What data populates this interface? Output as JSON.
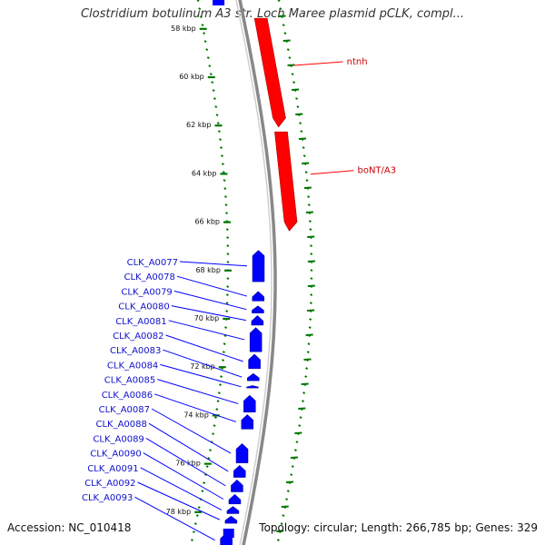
{
  "title": "Clostridium botulinum A3 str. Loch Maree plasmid pCLK, compl...",
  "footer": {
    "accession": "Accession: NC_010418",
    "topology": "Topology: circular; Length: 266,785 bp; Genes: 329"
  },
  "ticks": [
    {
      "label": "58 kbp",
      "pos": 58
    },
    {
      "label": "60 kbp",
      "pos": 60
    },
    {
      "label": "62 kbp",
      "pos": 62
    },
    {
      "label": "64 kbp",
      "pos": 64
    },
    {
      "label": "66 kbp",
      "pos": 66
    },
    {
      "label": "68 kbp",
      "pos": 68
    },
    {
      "label": "70 kbp",
      "pos": 70
    },
    {
      "label": "72 kbp",
      "pos": 72
    },
    {
      "label": "74 kbp",
      "pos": 74
    },
    {
      "label": "76 kbp",
      "pos": 76
    },
    {
      "label": "78 kbp",
      "pos": 78
    }
  ],
  "colors": {
    "forward_gene": "#ff0000",
    "reverse_gene": "#0000ff",
    "backbone": "#888888",
    "ticks": "#007700"
  },
  "forward_genes": [
    {
      "name": "ntnh",
      "start": 57.6,
      "end": 62.1
    },
    {
      "name": "boNT/A3",
      "start": 62.3,
      "end": 66.4
    }
  ],
  "reverse_genes": [
    {
      "name": "CLK_A0077",
      "start": 67.2,
      "end": 68.5
    },
    {
      "name": "CLK_A0078",
      "start": 68.9,
      "end": 69.3
    },
    {
      "name": "CLK_A0079",
      "start": 69.5,
      "end": 69.8
    },
    {
      "name": "CLK_A0080",
      "start": 69.9,
      "end": 70.3
    },
    {
      "name": "CLK_A0081",
      "start": 70.4,
      "end": 71.4
    },
    {
      "name": "CLK_A0082",
      "start": 71.5,
      "end": 72.1
    },
    {
      "name": "CLK_A0083",
      "start": 72.3,
      "end": 72.6
    },
    {
      "name": "CLK_A0084",
      "start": 72.8,
      "end": 72.9
    },
    {
      "name": "CLK_A0085",
      "start": 73.2,
      "end": 73.9
    },
    {
      "name": "CLK_A0086",
      "start": 74.0,
      "end": 74.6
    },
    {
      "name": "CLK_A0087",
      "start": 75.2,
      "end": 76.0
    },
    {
      "name": "CLK_A0088",
      "start": 76.1,
      "end": 76.6
    },
    {
      "name": "CLK_A0089",
      "start": 76.7,
      "end": 77.2
    },
    {
      "name": "CLK_A0090",
      "start": 77.3,
      "end": 77.7
    },
    {
      "name": "CLK_A0091",
      "start": 77.8,
      "end": 78.1
    },
    {
      "name": "CLK_A0092",
      "start": 78.2,
      "end": 78.5
    },
    {
      "name": "CLK_A0093",
      "start": 78.9,
      "end": 79.5
    }
  ]
}
